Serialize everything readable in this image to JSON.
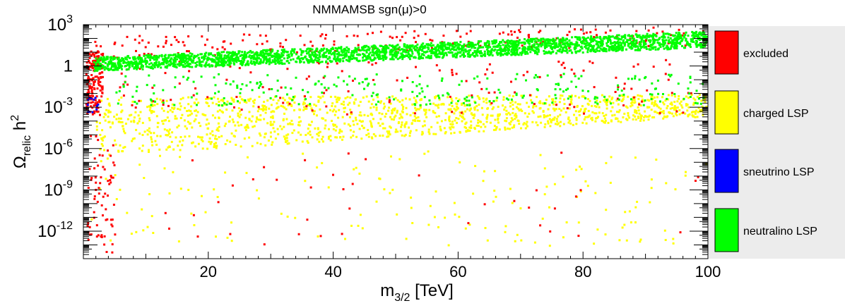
{
  "chart_data": {
    "type": "scatter",
    "title": "NMMAMSB    sgn(μ)>0",
    "xlabel": {
      "base": "m",
      "sub": "3/2",
      "rest": " [TeV]"
    },
    "ylabel": {
      "base": "Ω",
      "sub": "relic",
      "rest": " h",
      "sup": "2"
    },
    "xlim": [
      0,
      100
    ],
    "ylim": [
      -14,
      3
    ],
    "y_scale": "log10",
    "x_ticks": [
      "20",
      "40",
      "60",
      "80",
      "100"
    ],
    "x_tick_values": [
      20,
      40,
      60,
      80,
      100
    ],
    "y_ticks": [
      {
        "value": 3,
        "base": "10",
        "exp": "3"
      },
      {
        "value": 0,
        "base": "1",
        "exp": ""
      },
      {
        "value": -3,
        "base": "10",
        "exp": "-3"
      },
      {
        "value": -6,
        "base": "10",
        "exp": "-6"
      },
      {
        "value": -9,
        "base": "10",
        "exp": "-9"
      },
      {
        "value": -12,
        "base": "10",
        "exp": "-12"
      }
    ],
    "grid": false,
    "legend_position": "right",
    "series": [
      {
        "name": "excluded",
        "color": "#ff0000",
        "regions": [
          {
            "x": [
              0.5,
              100
            ],
            "logy_low_at": [
              0.6,
              1.6
            ],
            "logy_high_at": [
              2.2,
              3.0
            ],
            "n": 220
          },
          {
            "x": [
              0.3,
              3.0
            ],
            "logy": [
              -3.5,
              1.2
            ],
            "n": 160
          },
          {
            "x": [
              5,
              100
            ],
            "logy": [
              -3.5,
              0.5
            ],
            "n": 140
          },
          {
            "x": [
              0.5,
              5
            ],
            "logy": [
              -13.5,
              -5
            ],
            "n": 70
          },
          {
            "x": [
              5,
              100
            ],
            "logy": [
              -13,
              -6
            ],
            "n": 40
          }
        ]
      },
      {
        "name": "charged LSP",
        "color": "#ffff00",
        "regions": [
          {
            "x": [
              2,
              100
            ],
            "logy_low_at": [
              -6.5,
              -3.6
            ],
            "logy_high_at": [
              -2.2,
              -2.0
            ],
            "n": 1400
          },
          {
            "x": [
              0.5,
              100
            ],
            "logy": [
              -13,
              -6
            ],
            "n": 160
          }
        ]
      },
      {
        "name": "sneutrino LSP",
        "color": "#0000ff",
        "regions": [
          {
            "x": [
              0.3,
              2.2
            ],
            "logy": [
              -3.6,
              -2.2
            ],
            "n": 12
          }
        ]
      },
      {
        "name": "neutralino LSP",
        "color": "#00ff00",
        "regions": [
          {
            "x": [
              1.5,
              100
            ],
            "logy_low_at": [
              -0.3,
              1.4
            ],
            "logy_high_at": [
              0.7,
              2.6
            ],
            "n": 2600
          },
          {
            "x": [
              5,
              100
            ],
            "logy": [
              -2.8,
              -0.5
            ],
            "n": 260
          }
        ]
      }
    ]
  },
  "colors": {
    "panel_bg": "#ececec",
    "axis": "#000000"
  }
}
